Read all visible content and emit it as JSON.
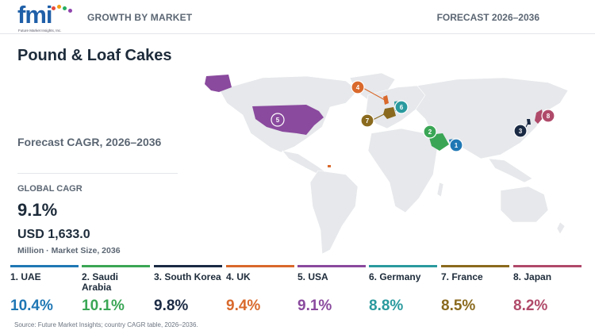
{
  "header": {
    "logo_text": "fmi",
    "logo_tagline": "Future Market Insights, Inc.",
    "left_label": "GROWTH BY MARKET",
    "right_label": "FORECAST 2026–2036",
    "logo_dot_colors": [
      "#e74c3c",
      "#f39c12",
      "#27ae60",
      "#8e44ad"
    ]
  },
  "title": "Pound & Loaf Cakes",
  "subtitle": "Forecast CAGR, 2026–2036",
  "global": {
    "cagr_label": "GLOBAL CAGR",
    "cagr_value": "9.1%",
    "market_size_value": "USD 1,633.0",
    "market_size_label": "Million · Market Size, 2036"
  },
  "map": {
    "land_color": "#e6e8eb",
    "highlighted": [
      {
        "country": "USA",
        "rank": "5",
        "color": "#8a4a9e"
      },
      {
        "country": "UAE",
        "rank": "1",
        "color": "#1f77b4"
      },
      {
        "country": "Saudi Arabia",
        "rank": "2",
        "color": "#3aa655"
      },
      {
        "country": "South Korea",
        "rank": "3",
        "color": "#1b2a44"
      },
      {
        "country": "UK",
        "rank": "4",
        "color": "#d9692c"
      },
      {
        "country": "Germany",
        "rank": "6",
        "color": "#2a9a9e"
      },
      {
        "country": "France",
        "rank": "7",
        "color": "#8a6a1e"
      },
      {
        "country": "Japan",
        "rank": "8",
        "color": "#b04a6a"
      }
    ]
  },
  "chart_data": {
    "type": "table",
    "title": "Pound & Loaf Cakes",
    "subtitle": "Forecast CAGR, 2026–2036",
    "categories": [
      "UAE",
      "Saudi Arabia",
      "South Korea",
      "UK",
      "USA",
      "Germany",
      "France",
      "Japan"
    ],
    "series": [
      {
        "name": "Forecast CAGR, 2026–2036",
        "values": [
          10.4,
          10.1,
          9.8,
          9.4,
          9.1,
          8.8,
          8.5,
          8.2
        ]
      }
    ],
    "global_cagr": 9.1,
    "market_size_2036_usd_million": 1633.0
  },
  "cards": [
    {
      "label": "1. UAE",
      "value": "10.4%",
      "color": "#1f77b4"
    },
    {
      "label": "2. Saudi Arabia",
      "value": "10.1%",
      "color": "#3aa655"
    },
    {
      "label": "3. South Korea",
      "value": "9.8%",
      "color": "#1b2a44"
    },
    {
      "label": "4. UK",
      "value": "9.4%",
      "color": "#d9692c"
    },
    {
      "label": "5. USA",
      "value": "9.1%",
      "color": "#8a4a9e"
    },
    {
      "label": "6. Germany",
      "value": "8.8%",
      "color": "#2a9a9e"
    },
    {
      "label": "7. France",
      "value": "8.5%",
      "color": "#8a6a1e"
    },
    {
      "label": "8. Japan",
      "value": "8.2%",
      "color": "#b04a6a"
    }
  ],
  "source": "Source: Future Market Insights; country CAGR table, 2026–2036."
}
